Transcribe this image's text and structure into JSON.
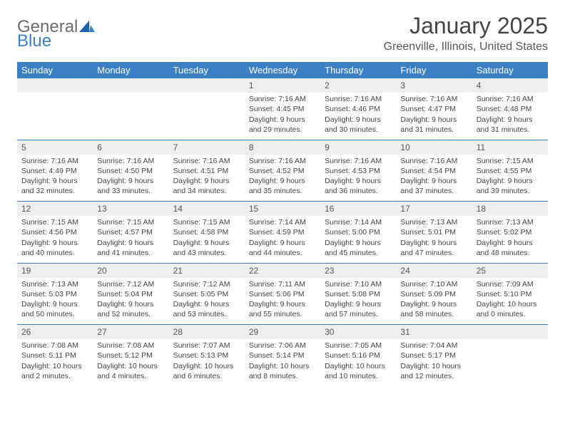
{
  "logo": {
    "general": "General",
    "blue": "Blue"
  },
  "title": "January 2025",
  "location": "Greenville, Illinois, United States",
  "colors": {
    "header_bg": "#3b7fc4",
    "header_fg": "#ffffff",
    "daynum_bg": "#eceef0",
    "text": "#444444",
    "logo_gray": "#6d6d6d",
    "logo_blue": "#3b7fc4",
    "row_divider": "#3b7fc4"
  },
  "font": {
    "title_size": 32,
    "location_size": 16,
    "weekday_size": 13,
    "cell_size": 10.5
  },
  "weekdays": [
    "Sunday",
    "Monday",
    "Tuesday",
    "Wednesday",
    "Thursday",
    "Friday",
    "Saturday"
  ],
  "first_weekday_index": 3,
  "days": [
    {
      "n": 1,
      "sunrise": "7:16 AM",
      "sunset": "4:45 PM",
      "daylight": "9 hours and 29 minutes."
    },
    {
      "n": 2,
      "sunrise": "7:16 AM",
      "sunset": "4:46 PM",
      "daylight": "9 hours and 30 minutes."
    },
    {
      "n": 3,
      "sunrise": "7:16 AM",
      "sunset": "4:47 PM",
      "daylight": "9 hours and 31 minutes."
    },
    {
      "n": 4,
      "sunrise": "7:16 AM",
      "sunset": "4:48 PM",
      "daylight": "9 hours and 31 minutes."
    },
    {
      "n": 5,
      "sunrise": "7:16 AM",
      "sunset": "4:49 PM",
      "daylight": "9 hours and 32 minutes."
    },
    {
      "n": 6,
      "sunrise": "7:16 AM",
      "sunset": "4:50 PM",
      "daylight": "9 hours and 33 minutes."
    },
    {
      "n": 7,
      "sunrise": "7:16 AM",
      "sunset": "4:51 PM",
      "daylight": "9 hours and 34 minutes."
    },
    {
      "n": 8,
      "sunrise": "7:16 AM",
      "sunset": "4:52 PM",
      "daylight": "9 hours and 35 minutes."
    },
    {
      "n": 9,
      "sunrise": "7:16 AM",
      "sunset": "4:53 PM",
      "daylight": "9 hours and 36 minutes."
    },
    {
      "n": 10,
      "sunrise": "7:16 AM",
      "sunset": "4:54 PM",
      "daylight": "9 hours and 37 minutes."
    },
    {
      "n": 11,
      "sunrise": "7:15 AM",
      "sunset": "4:55 PM",
      "daylight": "9 hours and 39 minutes."
    },
    {
      "n": 12,
      "sunrise": "7:15 AM",
      "sunset": "4:56 PM",
      "daylight": "9 hours and 40 minutes."
    },
    {
      "n": 13,
      "sunrise": "7:15 AM",
      "sunset": "4:57 PM",
      "daylight": "9 hours and 41 minutes."
    },
    {
      "n": 14,
      "sunrise": "7:15 AM",
      "sunset": "4:58 PM",
      "daylight": "9 hours and 43 minutes."
    },
    {
      "n": 15,
      "sunrise": "7:14 AM",
      "sunset": "4:59 PM",
      "daylight": "9 hours and 44 minutes."
    },
    {
      "n": 16,
      "sunrise": "7:14 AM",
      "sunset": "5:00 PM",
      "daylight": "9 hours and 45 minutes."
    },
    {
      "n": 17,
      "sunrise": "7:13 AM",
      "sunset": "5:01 PM",
      "daylight": "9 hours and 47 minutes."
    },
    {
      "n": 18,
      "sunrise": "7:13 AM",
      "sunset": "5:02 PM",
      "daylight": "9 hours and 48 minutes."
    },
    {
      "n": 19,
      "sunrise": "7:13 AM",
      "sunset": "5:03 PM",
      "daylight": "9 hours and 50 minutes."
    },
    {
      "n": 20,
      "sunrise": "7:12 AM",
      "sunset": "5:04 PM",
      "daylight": "9 hours and 52 minutes."
    },
    {
      "n": 21,
      "sunrise": "7:12 AM",
      "sunset": "5:05 PM",
      "daylight": "9 hours and 53 minutes."
    },
    {
      "n": 22,
      "sunrise": "7:11 AM",
      "sunset": "5:06 PM",
      "daylight": "9 hours and 55 minutes."
    },
    {
      "n": 23,
      "sunrise": "7:10 AM",
      "sunset": "5:08 PM",
      "daylight": "9 hours and 57 minutes."
    },
    {
      "n": 24,
      "sunrise": "7:10 AM",
      "sunset": "5:09 PM",
      "daylight": "9 hours and 58 minutes."
    },
    {
      "n": 25,
      "sunrise": "7:09 AM",
      "sunset": "5:10 PM",
      "daylight": "10 hours and 0 minutes."
    },
    {
      "n": 26,
      "sunrise": "7:08 AM",
      "sunset": "5:11 PM",
      "daylight": "10 hours and 2 minutes."
    },
    {
      "n": 27,
      "sunrise": "7:08 AM",
      "sunset": "5:12 PM",
      "daylight": "10 hours and 4 minutes."
    },
    {
      "n": 28,
      "sunrise": "7:07 AM",
      "sunset": "5:13 PM",
      "daylight": "10 hours and 6 minutes."
    },
    {
      "n": 29,
      "sunrise": "7:06 AM",
      "sunset": "5:14 PM",
      "daylight": "10 hours and 8 minutes."
    },
    {
      "n": 30,
      "sunrise": "7:05 AM",
      "sunset": "5:16 PM",
      "daylight": "10 hours and 10 minutes."
    },
    {
      "n": 31,
      "sunrise": "7:04 AM",
      "sunset": "5:17 PM",
      "daylight": "10 hours and 12 minutes."
    }
  ],
  "labels": {
    "sunrise": "Sunrise:",
    "sunset": "Sunset:",
    "daylight": "Daylight:"
  }
}
